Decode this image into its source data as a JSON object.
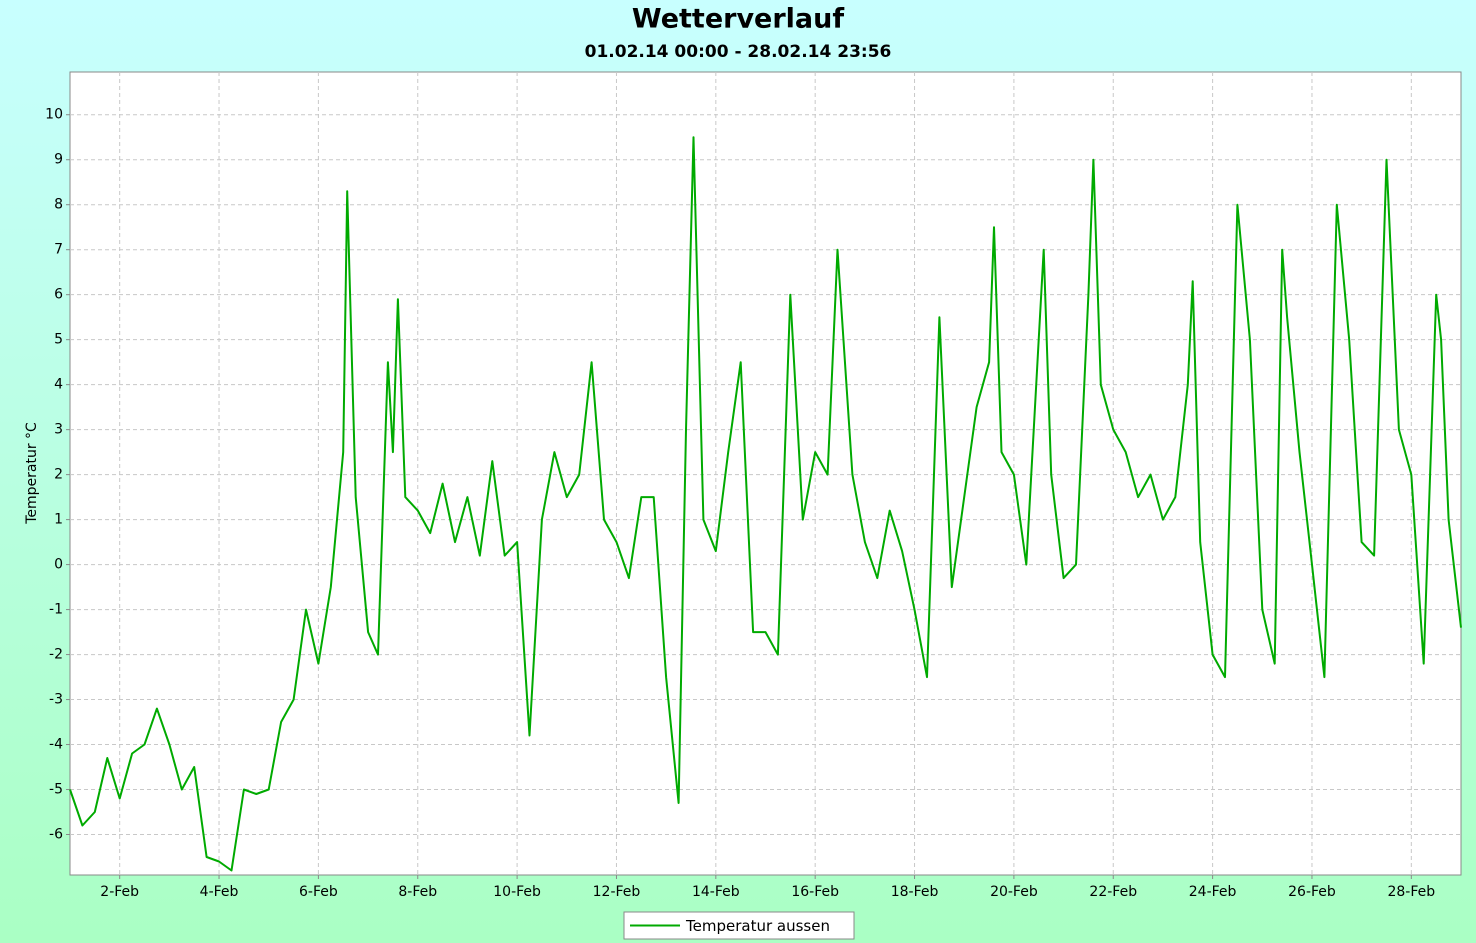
{
  "chart_data": {
    "type": "line",
    "title": "Wetterverlauf",
    "subtitle": "01.02.14 00:00 - 28.02.14 23:56",
    "y_label": "Temperatur °C",
    "legend": "bottom",
    "grid": true,
    "xlim": [
      1,
      29
    ],
    "ylim": [
      -6.9,
      10.95
    ],
    "xticks": [
      {
        "value": 2,
        "label": "2-Feb"
      },
      {
        "value": 4,
        "label": "4-Feb"
      },
      {
        "value": 6,
        "label": "6-Feb"
      },
      {
        "value": 8,
        "label": "8-Feb"
      },
      {
        "value": 10,
        "label": "10-Feb"
      },
      {
        "value": 12,
        "label": "12-Feb"
      },
      {
        "value": 14,
        "label": "14-Feb"
      },
      {
        "value": 16,
        "label": "16-Feb"
      },
      {
        "value": 18,
        "label": "18-Feb"
      },
      {
        "value": 20,
        "label": "20-Feb"
      },
      {
        "value": 22,
        "label": "22-Feb"
      },
      {
        "value": 24,
        "label": "24-Feb"
      },
      {
        "value": 26,
        "label": "26-Feb"
      },
      {
        "value": 28,
        "label": "28-Feb"
      }
    ],
    "yticks": [
      -6,
      -5,
      -4,
      -3,
      -2,
      -1,
      0,
      1,
      2,
      3,
      4,
      5,
      6,
      7,
      8,
      9,
      10
    ],
    "x": [
      1,
      1.25,
      1.5,
      1.75,
      2,
      2.25,
      2.5,
      2.75,
      3,
      3.25,
      3.5,
      3.75,
      4,
      4.25,
      4.5,
      4.75,
      5,
      5.25,
      5.5,
      5.75,
      6,
      6.25,
      6.5,
      6.58,
      6.75,
      7,
      7.2,
      7.4,
      7.5,
      7.6,
      7.75,
      8,
      8.25,
      8.5,
      8.75,
      9,
      9.25,
      9.5,
      9.75,
      10,
      10.25,
      10.5,
      10.75,
      11,
      11.25,
      11.5,
      11.75,
      12,
      12.25,
      12.5,
      12.75,
      13,
      13.25,
      13.4,
      13.55,
      13.75,
      14,
      14.25,
      14.5,
      14.75,
      15,
      15.25,
      15.5,
      15.75,
      16,
      16.25,
      16.45,
      16.75,
      17,
      17.25,
      17.5,
      17.75,
      18,
      18.25,
      18.5,
      18.75,
      19,
      19.25,
      19.5,
      19.6,
      19.75,
      20,
      20.25,
      20.5,
      20.6,
      20.75,
      21,
      21.25,
      21.5,
      21.6,
      21.75,
      22,
      22.25,
      22.5,
      22.75,
      23,
      23.25,
      23.5,
      23.6,
      23.75,
      24,
      24.25,
      24.5,
      24.75,
      25,
      25.25,
      25.4,
      25.5,
      25.75,
      26,
      26.25,
      26.5,
      26.75,
      27,
      27.25,
      27.5,
      27.75,
      28,
      28.25,
      28.5,
      28.6,
      28.75,
      29
    ],
    "series": [
      {
        "name": "Temperatur aussen",
        "color": "#00aa00",
        "values": [
          -5.0,
          -5.8,
          -5.5,
          -4.3,
          -5.2,
          -4.2,
          -4.0,
          -3.2,
          -4.0,
          -5.0,
          -4.5,
          -6.5,
          -6.6,
          -6.8,
          -5.0,
          -5.1,
          -5.0,
          -3.5,
          -3.0,
          -1.0,
          -2.2,
          -0.5,
          2.5,
          8.3,
          1.5,
          -1.5,
          -2.0,
          4.5,
          2.5,
          5.9,
          1.5,
          1.2,
          0.7,
          1.8,
          0.5,
          1.5,
          0.2,
          2.3,
          0.2,
          0.5,
          -3.8,
          1.0,
          2.5,
          1.5,
          2.0,
          4.5,
          1.0,
          0.5,
          -0.3,
          1.5,
          1.5,
          -2.5,
          -5.3,
          3.0,
          9.5,
          1.0,
          0.3,
          2.5,
          4.5,
          -1.5,
          -1.5,
          -2.0,
          6.0,
          1.0,
          2.5,
          2.0,
          7.0,
          2.0,
          0.5,
          -0.3,
          1.2,
          0.3,
          -1.0,
          -2.5,
          5.5,
          -0.5,
          1.5,
          3.5,
          4.5,
          7.5,
          2.5,
          2.0,
          0.0,
          5.0,
          7.0,
          2.0,
          -0.3,
          0.0,
          6.0,
          9.0,
          4.0,
          3.0,
          2.5,
          1.5,
          2.0,
          1.0,
          1.5,
          4.0,
          6.3,
          0.5,
          -2.0,
          -2.5,
          8.0,
          5.0,
          -1.0,
          -2.2,
          7.0,
          5.5,
          2.5,
          0.0,
          -2.5,
          8.0,
          5.0,
          0.5,
          0.2,
          9.0,
          3.0,
          2.0,
          -2.2,
          6.0,
          5.0,
          1.0,
          -1.4
        ]
      }
    ]
  }
}
